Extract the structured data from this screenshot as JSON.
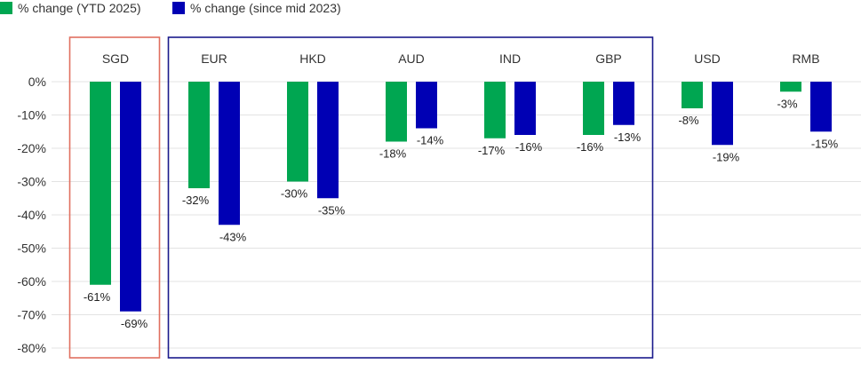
{
  "chart_data": {
    "type": "bar",
    "categories": [
      "SGD",
      "EUR",
      "HKD",
      "AUD",
      "IND",
      "GBP",
      "USD",
      "RMB"
    ],
    "series": [
      {
        "name": "% change (YTD 2025)",
        "color": "#00a651",
        "values": [
          -61,
          -32,
          -30,
          -18,
          -17,
          -16,
          -8,
          -3
        ]
      },
      {
        "name": "% change (since mid 2023)",
        "color": "#0000b4",
        "values": [
          -69,
          -43,
          -35,
          -14,
          -16,
          -13,
          -19,
          -15
        ]
      }
    ],
    "data_labels": [
      [
        "-61%",
        "-32%",
        "-30%",
        "-18%",
        "-17%",
        "-16%",
        "-8%",
        "-3%"
      ],
      [
        "-69%",
        "-43%",
        "-35%",
        "-14%",
        "-16%",
        "-13%",
        "-19%",
        "-15%"
      ]
    ],
    "y_ticks": [
      0,
      -10,
      -20,
      -30,
      -40,
      -50,
      -60,
      -70,
      -80
    ],
    "y_tick_labels": [
      "0%",
      "-10%",
      "-20%",
      "-30%",
      "-40%",
      "-50%",
      "-60%",
      "-70%",
      "-80%"
    ],
    "ylim": [
      -80,
      0
    ],
    "grid": true,
    "legend": "top-left",
    "highlight_groups": [
      {
        "categories": [
          "SGD"
        ],
        "color": "#e07060"
      },
      {
        "categories": [
          "EUR",
          "HKD",
          "AUD",
          "IND",
          "GBP"
        ],
        "color": "#1a1a8c"
      }
    ]
  }
}
